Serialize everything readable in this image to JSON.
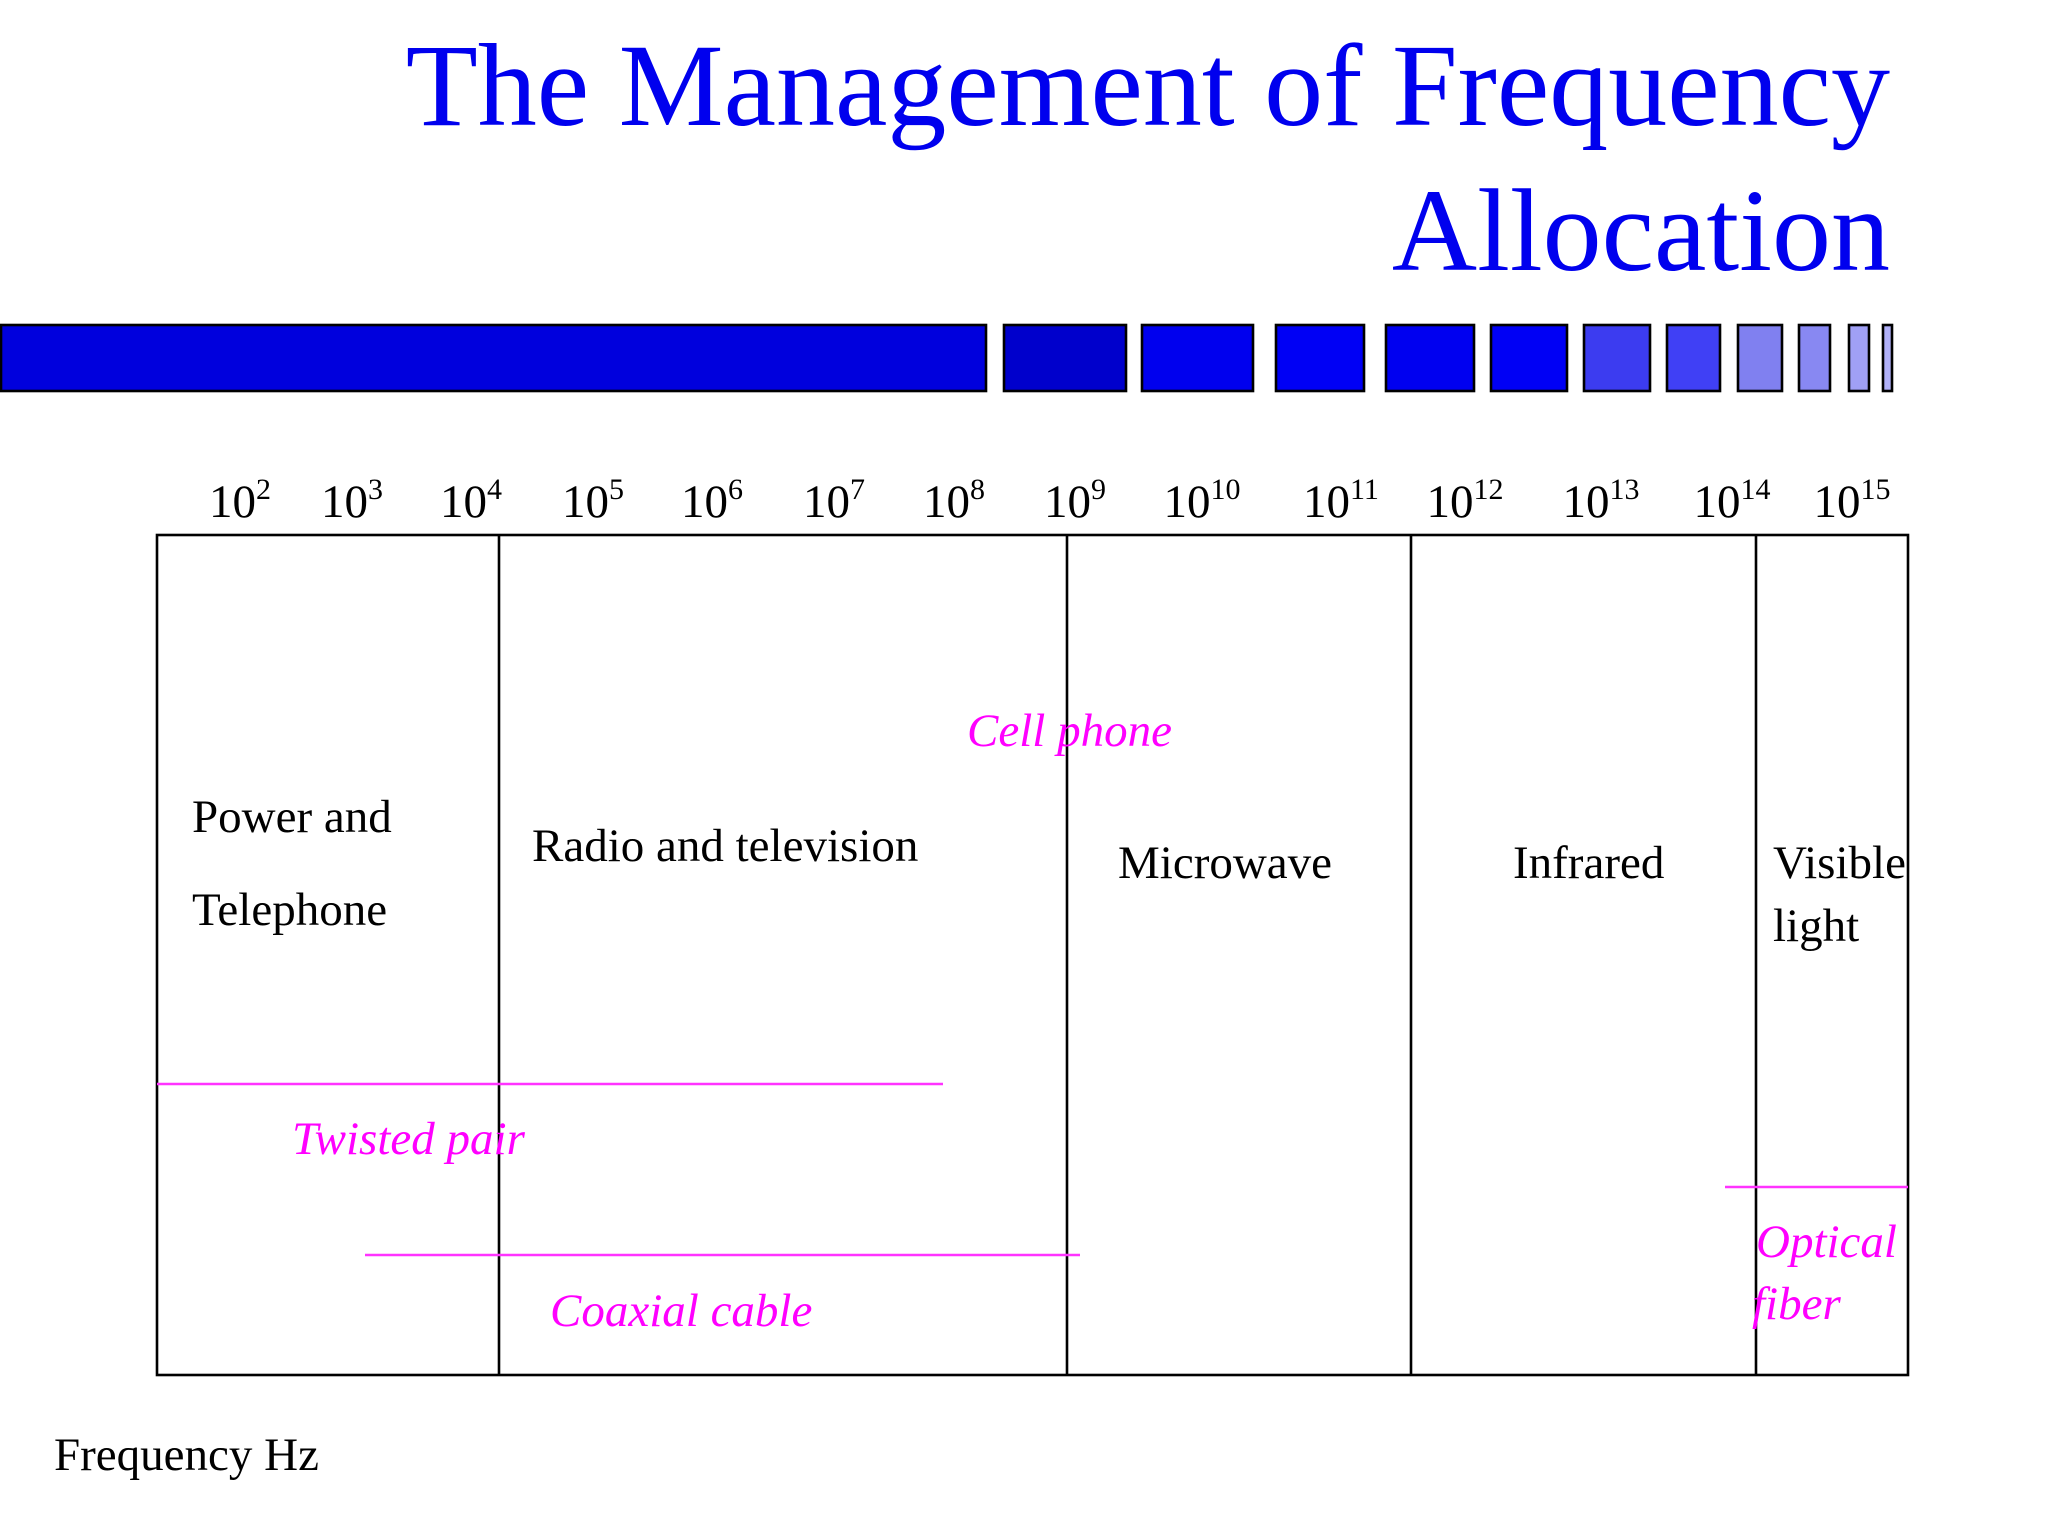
{
  "title": {
    "line1": "The Management of Frequency",
    "line2": "Allocation"
  },
  "frequency_ticks": [
    {
      "base": "10",
      "exponent": "2"
    },
    {
      "base": "10",
      "exponent": "3"
    },
    {
      "base": "10",
      "exponent": "4"
    },
    {
      "base": "10",
      "exponent": "5"
    },
    {
      "base": "10",
      "exponent": "6"
    },
    {
      "base": "10",
      "exponent": "7"
    },
    {
      "base": "10",
      "exponent": "8"
    },
    {
      "base": "10",
      "exponent": "9"
    },
    {
      "base": "10",
      "exponent": "10"
    },
    {
      "base": "10",
      "exponent": "11"
    },
    {
      "base": "10",
      "exponent": "12"
    },
    {
      "base": "10",
      "exponent": "13"
    },
    {
      "base": "10",
      "exponent": "14"
    },
    {
      "base": "10",
      "exponent": "15"
    }
  ],
  "bands": [
    {
      "lines": [
        "Power and",
        "Telephone"
      ]
    },
    {
      "lines": [
        "Radio and television"
      ]
    },
    {
      "lines": [
        "Microwave"
      ]
    },
    {
      "lines": [
        "Infrared"
      ]
    },
    {
      "lines": [
        "Visible",
        "light"
      ]
    }
  ],
  "media": {
    "cell_phone": "Cell phone",
    "twisted_pair": "Twisted pair",
    "coaxial_cable": "Coaxial cable",
    "optical_fiber": [
      "Optical",
      "fiber"
    ]
  },
  "axis_label": "Frequency Hz"
}
